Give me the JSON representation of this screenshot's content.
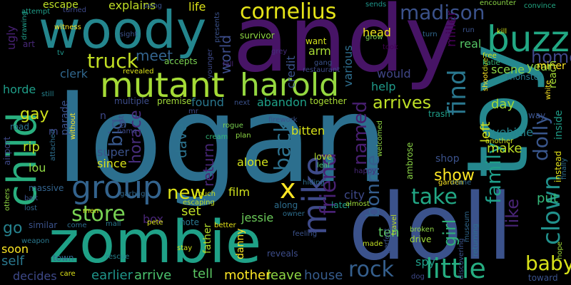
{
  "words": [
    {
      "text": "logan",
      "color": "#2c6f8e"
    },
    {
      "text": "andy",
      "color": "#471466"
    },
    {
      "text": "toy",
      "color": "#25888e"
    },
    {
      "text": "doll",
      "color": "#3b528b"
    },
    {
      "text": "woody",
      "color": "#24868e"
    },
    {
      "text": "zombie",
      "color": "#1fa187"
    },
    {
      "text": "mutant",
      "color": "#a5db36"
    },
    {
      "text": "child",
      "color": "#29af7f"
    },
    {
      "text": "harold",
      "color": "#95d840"
    },
    {
      "text": "buzz",
      "color": "#22a884"
    },
    {
      "text": "group",
      "color": "#33638d"
    },
    {
      "text": "mike",
      "color": "#3e4a89"
    },
    {
      "text": "truck",
      "color": "#c2df23"
    },
    {
      "text": "cornelius",
      "color": "#e5e419"
    },
    {
      "text": "madison",
      "color": "#3b528b"
    },
    {
      "text": "find",
      "color": "#2a778e"
    },
    {
      "text": "friend",
      "color": "#482173"
    },
    {
      "text": "little",
      "color": "#26ad81"
    },
    {
      "text": "rock",
      "color": "#355f8d"
    },
    {
      "text": "store",
      "color": "#77d153"
    },
    {
      "text": "clown",
      "color": "#21918c"
    },
    {
      "text": "family",
      "color": "#1f9e89"
    },
    {
      "text": "dolly",
      "color": "#39568c"
    },
    {
      "text": "home",
      "color": "#3f4788"
    },
    {
      "text": "arrives",
      "color": "#bddf26"
    },
    {
      "text": "bonnie",
      "color": "#355e8d"
    },
    {
      "text": "take",
      "color": "#22a785"
    },
    {
      "text": "named",
      "color": "#481f70"
    },
    {
      "text": "baby",
      "color": "#d8e219"
    },
    {
      "text": "x",
      "color": "#fde725"
    },
    {
      "text": "show",
      "color": "#fde725"
    },
    {
      "text": "new",
      "color": "#dde318"
    },
    {
      "text": "back",
      "color": "#2d718e"
    },
    {
      "text": "big",
      "color": "#38588c"
    },
    {
      "text": "horace",
      "color": "#472d7b"
    },
    {
      "text": "gay",
      "color": "#d0e11c"
    },
    {
      "text": "world",
      "color": "#3d4d8a"
    },
    {
      "text": "meet",
      "color": "#33638d"
    },
    {
      "text": "return",
      "color": "#482677"
    },
    {
      "text": "dave",
      "color": "#2c728e"
    },
    {
      "text": "set",
      "color": "#c0df25"
    },
    {
      "text": "go",
      "color": "#26828e"
    },
    {
      "text": "house",
      "color": "#365c8d"
    },
    {
      "text": "leave",
      "color": "#8fd744"
    },
    {
      "text": "mother",
      "color": "#fde725"
    },
    {
      "text": "tell",
      "color": "#5cc863"
    },
    {
      "text": "earlier",
      "color": "#1f968b"
    },
    {
      "text": "arrive",
      "color": "#4ac16d"
    },
    {
      "text": "decides",
      "color": "#3e4989"
    },
    {
      "text": "self",
      "color": "#2a788e"
    },
    {
      "text": "soon",
      "color": "#fde725"
    },
    {
      "text": "ten",
      "color": "#5ec962"
    },
    {
      "text": "spy",
      "color": "#1f9e89"
    },
    {
      "text": "like",
      "color": "#482475"
    },
    {
      "text": "girl",
      "color": "#30b07a"
    },
    {
      "text": "left",
      "color": "#d2e21b"
    },
    {
      "text": "make",
      "color": "#bddf26"
    },
    {
      "text": "put",
      "color": "#35b779"
    },
    {
      "text": "day",
      "color": "#a0da39"
    },
    {
      "text": "vehicle",
      "color": "#25848e"
    },
    {
      "text": "miller",
      "color": "#440154"
    },
    {
      "text": "scene",
      "color": "#8bd646"
    },
    {
      "text": "year",
      "color": "#8fd744"
    },
    {
      "text": "real",
      "color": "#56c667"
    },
    {
      "text": "head",
      "color": "#f4e61e"
    },
    {
      "text": "help",
      "color": "#1f9a8a"
    },
    {
      "text": "would",
      "color": "#404688"
    },
    {
      "text": "various",
      "color": "#2e6e8e"
    },
    {
      "text": "arm",
      "color": "#a8db34"
    },
    {
      "text": "credit",
      "color": "#3b528b"
    },
    {
      "text": "want",
      "color": "#d2e21b"
    },
    {
      "text": "life",
      "color": "#dde318"
    },
    {
      "text": "explains",
      "color": "#c0df25"
    },
    {
      "text": "escape",
      "color": "#bddf26"
    },
    {
      "text": "clerk",
      "color": "#31688e"
    },
    {
      "text": "ugly",
      "color": "#482173"
    },
    {
      "text": "art",
      "color": "#482878"
    },
    {
      "text": "horde",
      "color": "#1f9e89"
    },
    {
      "text": "parade",
      "color": "#3b528b"
    },
    {
      "text": "rip",
      "color": "#bddf26"
    },
    {
      "text": "lou",
      "color": "#8fd744"
    },
    {
      "text": "road",
      "color": "#2c728e"
    },
    {
      "text": "airport",
      "color": "#3e4989"
    },
    {
      "text": "massive",
      "color": "#33638d"
    },
    {
      "text": "super",
      "color": "#3b528b"
    },
    {
      "text": "since",
      "color": "#d8e219"
    },
    {
      "text": "alone",
      "color": "#d2e21b"
    },
    {
      "text": "film",
      "color": "#d0e11c"
    },
    {
      "text": "box",
      "color": "#482576"
    },
    {
      "text": "father",
      "color": "#b5de2b"
    },
    {
      "text": "danny",
      "color": "#fde725"
    },
    {
      "text": "jessie",
      "color": "#6ccd5a"
    },
    {
      "text": "city",
      "color": "#3e4989"
    },
    {
      "text": "later",
      "color": "#1f9a8a"
    },
    {
      "text": "bitten",
      "color": "#d8e219"
    },
    {
      "text": "found",
      "color": "#2a778e"
    },
    {
      "text": "abandon",
      "color": "#1fa088"
    },
    {
      "text": "multiple",
      "color": "#3d4d8a"
    },
    {
      "text": "premise",
      "color": "#a0da39"
    },
    {
      "text": "accepts",
      "color": "#7ad151"
    },
    {
      "text": "younger",
      "color": "#3e4989"
    },
    {
      "text": "survivor",
      "color": "#8fd744"
    },
    {
      "text": "together",
      "color": "#a8db34"
    },
    {
      "text": "next",
      "color": "#3b528b"
    },
    {
      "text": "restaurant",
      "color": "#3e4989"
    },
    {
      "text": "trash",
      "color": "#1f9e89"
    },
    {
      "text": "ambrose",
      "color": "#8bd646"
    },
    {
      "text": "shop",
      "color": "#3b528b"
    },
    {
      "text": "miner",
      "color": "#fde725"
    },
    {
      "text": "reach",
      "color": "#a5db36"
    },
    {
      "text": "inside",
      "color": "#1f9e89"
    },
    {
      "text": "instead",
      "color": "#e5e419"
    },
    {
      "text": "broken",
      "color": "#8fd744"
    },
    {
      "text": "drive",
      "color": "#a0da39"
    },
    {
      "text": "reveals",
      "color": "#3d4d8a"
    },
    {
      "text": "travel",
      "color": "#bddf26"
    },
    {
      "text": "toward",
      "color": "#3b528b"
    },
    {
      "text": "dog",
      "color": "#3e4989"
    },
    {
      "text": "town",
      "color": "#31688e"
    },
    {
      "text": "monster",
      "color": "#2a788e"
    },
    {
      "text": "free",
      "color": "#d2e21b"
    },
    {
      "text": "shoot",
      "color": "#fde725"
    },
    {
      "text": "due",
      "color": "#d0e11c"
    },
    {
      "text": "white",
      "color": "#fde725"
    },
    {
      "text": "kill",
      "color": "#d2e21b"
    },
    {
      "text": "took",
      "color": "#440154"
    },
    {
      "text": "turn",
      "color": "#31688e"
    },
    {
      "text": "convince",
      "color": "#22a884"
    },
    {
      "text": "encounter",
      "color": "#8bd646"
    },
    {
      "text": "sends",
      "color": "#1f968b"
    },
    {
      "text": "attempt",
      "color": "#1f9e89"
    },
    {
      "text": "using",
      "color": "#3b528b"
    },
    {
      "text": "grow",
      "color": "#7ad151"
    },
    {
      "text": "grey",
      "color": "#472d7b"
    },
    {
      "text": "fall",
      "color": "#482677"
    },
    {
      "text": "plan",
      "color": "#8fd744"
    },
    {
      "text": "cream",
      "color": "#35b779"
    },
    {
      "text": "rogue",
      "color": "#7ad151"
    },
    {
      "text": "firework",
      "color": "#3b528b"
    },
    {
      "text": "love",
      "color": "#b5de2b"
    },
    {
      "text": "leaf",
      "color": "#4ac16d"
    },
    {
      "text": "hiding",
      "color": "#2e6e8e"
    },
    {
      "text": "welcomed",
      "color": "#8fd744"
    },
    {
      "text": "garden",
      "color": "#fde725"
    },
    {
      "text": "crane",
      "color": "#31688e"
    },
    {
      "text": "happy",
      "color": "#482878"
    },
    {
      "text": "almost",
      "color": "#a0da39"
    },
    {
      "text": "along",
      "color": "#2e6e8e"
    },
    {
      "text": "owner",
      "color": "#2e6e8e"
    },
    {
      "text": "feeling",
      "color": "#3b528b"
    },
    {
      "text": "made",
      "color": "#c2df23"
    },
    {
      "text": "perfect",
      "color": "#3b528b"
    },
    {
      "text": "note",
      "color": "#2a788e"
    },
    {
      "text": "better",
      "color": "#e5e419"
    },
    {
      "text": "much",
      "color": "#d0e11c"
    },
    {
      "text": "escaping",
      "color": "#c2df23"
    },
    {
      "text": "pete",
      "color": "#d8e219"
    },
    {
      "text": "stay",
      "color": "#d0e11c"
    },
    {
      "text": "mall",
      "color": "#2a788e"
    },
    {
      "text": "garbage",
      "color": "#31688e"
    },
    {
      "text": "men",
      "color": "#d0e11c"
    },
    {
      "text": "rescue",
      "color": "#26828e"
    },
    {
      "text": "care",
      "color": "#dde318"
    },
    {
      "text": "without",
      "color": "#fde725"
    },
    {
      "text": "last",
      "color": "#3e4989"
    },
    {
      "text": "attached",
      "color": "#2e6e8e"
    },
    {
      "text": "similar",
      "color": "#3b528b"
    },
    {
      "text": "lost",
      "color": "#31688e"
    },
    {
      "text": "bait",
      "color": "#3b528b"
    },
    {
      "text": "weapon",
      "color": "#2a788e"
    },
    {
      "text": "others",
      "color": "#8fd744"
    },
    {
      "text": "witness",
      "color": "#fde725"
    },
    {
      "text": "still",
      "color": "#26828e"
    },
    {
      "text": "drawing",
      "color": "#1f9e89"
    },
    {
      "text": "tv",
      "color": "#1f968b"
    },
    {
      "text": "revealed",
      "color": "#dde318"
    },
    {
      "text": "hope",
      "color": "#a0da39"
    },
    {
      "text": "way",
      "color": "#3b528b"
    },
    {
      "text": "finally",
      "color": "#2e6e8e"
    },
    {
      "text": "another",
      "color": "#d0e11c"
    },
    {
      "text": "returning",
      "color": "#2e6e8e"
    },
    {
      "text": "discovering",
      "color": "#3b528b"
    },
    {
      "text": "museum",
      "color": "#31688e"
    },
    {
      "text": "katie",
      "color": "#35b779"
    },
    {
      "text": "run",
      "color": "#3b528b"
    },
    {
      "text": "presents",
      "color": "#3b528b"
    },
    {
      "text": "sight",
      "color": "#3b528b"
    },
    {
      "text": "turned",
      "color": "#3e4989"
    },
    {
      "text": "name",
      "color": "#3e4989"
    },
    {
      "text": "mr",
      "color": "#3e4989"
    },
    {
      "text": "n",
      "color": "#3e4989"
    },
    {
      "text": "m",
      "color": "#3e4989"
    },
    {
      "text": "gang",
      "color": "#3b528b"
    },
    {
      "text": "come",
      "color": "#2e6e8e"
    }
  ]
}
